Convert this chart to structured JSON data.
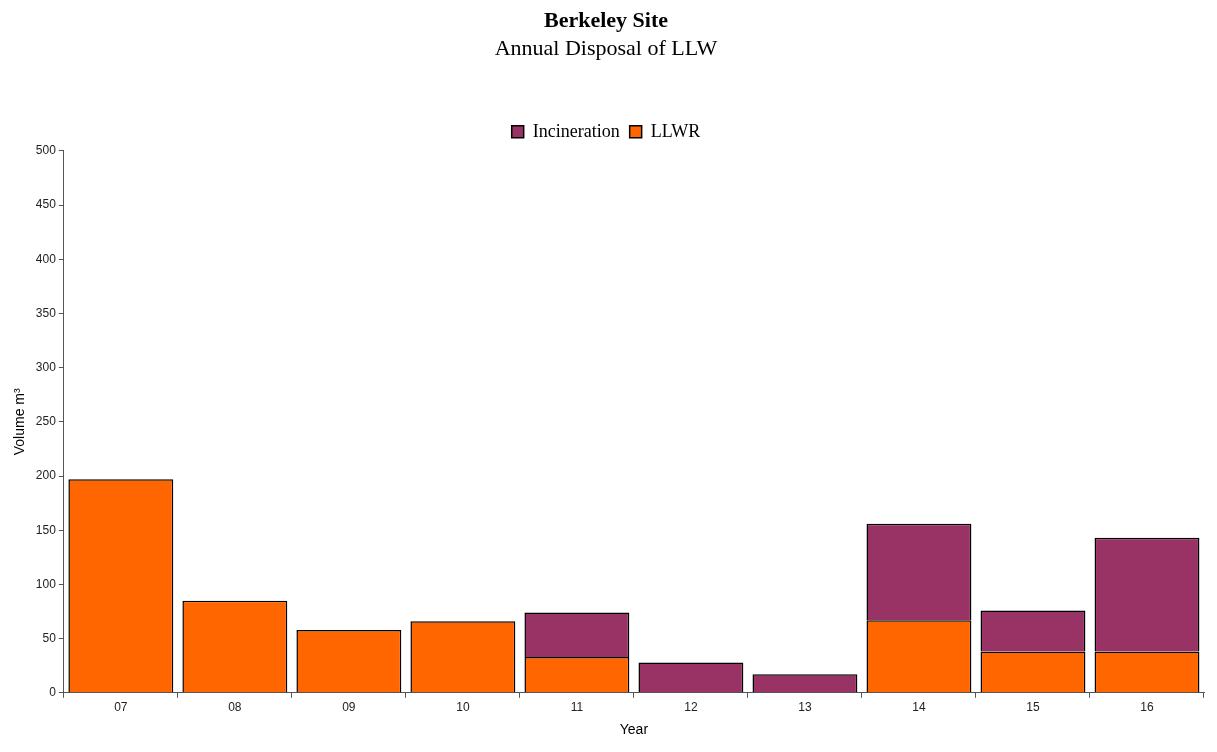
{
  "chart_data": {
    "type": "bar",
    "title": "Berkeley Site",
    "subtitle": "Annual Disposal of LLW",
    "xlabel": "Year",
    "ylabel": "Volume m³",
    "categories": [
      "07",
      "08",
      "09",
      "10",
      "11",
      "12",
      "13",
      "14",
      "15",
      "16"
    ],
    "stacked": true,
    "series": [
      {
        "name": "LLWR",
        "color": "#ff6600",
        "values": [
          197,
          85,
          58,
          66,
          33,
          0,
          0,
          67,
          38,
          38
        ]
      },
      {
        "name": "Incineration",
        "color": "#993366",
        "values": [
          0,
          0,
          0,
          0,
          41,
          28,
          17,
          89,
          38,
          105
        ]
      }
    ],
    "ylim": [
      0,
      500
    ],
    "yticks": [
      0,
      50,
      100,
      150,
      200,
      250,
      300,
      350,
      400,
      450,
      500
    ],
    "grid": false,
    "legend": "top"
  }
}
